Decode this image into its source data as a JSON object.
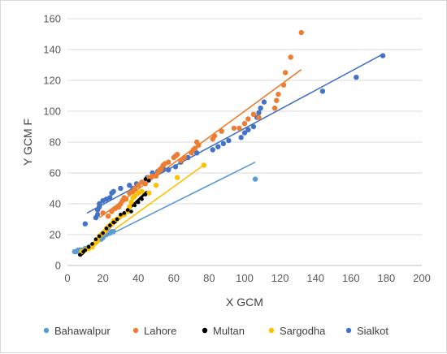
{
  "chart_data": {
    "type": "scatter",
    "title": "",
    "xlabel": "X GCM",
    "ylabel": "Y GCM F",
    "xlim": [
      0,
      200
    ],
    "ylim": [
      0,
      160
    ],
    "xticks": [
      0,
      20,
      40,
      60,
      80,
      100,
      120,
      140,
      160,
      180,
      200
    ],
    "yticks": [
      0,
      20,
      40,
      60,
      80,
      100,
      120,
      140,
      160
    ],
    "grid": "horizontal",
    "legend_position": "bottom",
    "trendlines": true,
    "series": [
      {
        "name": "Bahawalpur",
        "color": "#5b9bd5",
        "points": [
          [
            4,
            9
          ],
          [
            5,
            9
          ],
          [
            6,
            10
          ],
          [
            7,
            10
          ],
          [
            8,
            10
          ],
          [
            10,
            11
          ],
          [
            12,
            12
          ],
          [
            14,
            13
          ],
          [
            16,
            15
          ],
          [
            17,
            16
          ],
          [
            18,
            18
          ],
          [
            19,
            17
          ],
          [
            20,
            18
          ],
          [
            22,
            20
          ],
          [
            24,
            21
          ],
          [
            25,
            22
          ],
          [
            26,
            22
          ],
          [
            106,
            56
          ]
        ],
        "trend": [
          [
            3,
            8
          ],
          [
            106,
            67
          ]
        ]
      },
      {
        "name": "Lahore",
        "color": "#ed7d31",
        "points": [
          [
            20,
            34
          ],
          [
            23,
            32
          ],
          [
            25,
            35
          ],
          [
            27,
            37
          ],
          [
            29,
            38
          ],
          [
            30,
            40
          ],
          [
            31,
            42
          ],
          [
            32,
            44
          ],
          [
            33,
            43
          ],
          [
            35,
            47
          ],
          [
            37,
            48
          ],
          [
            38,
            50
          ],
          [
            40,
            52
          ],
          [
            42,
            54
          ],
          [
            44,
            53
          ],
          [
            46,
            57
          ],
          [
            48,
            58
          ],
          [
            50,
            58
          ],
          [
            51,
            60
          ],
          [
            52,
            62
          ],
          [
            53,
            63
          ],
          [
            54,
            65
          ],
          [
            55,
            66
          ],
          [
            57,
            67
          ],
          [
            60,
            70
          ],
          [
            61,
            71
          ],
          [
            62,
            72
          ],
          [
            64,
            68
          ],
          [
            66,
            70
          ],
          [
            70,
            73
          ],
          [
            71,
            75
          ],
          [
            72,
            76
          ],
          [
            73,
            80
          ],
          [
            74,
            78
          ],
          [
            82,
            82
          ],
          [
            83,
            84
          ],
          [
            87,
            87
          ],
          [
            94,
            89
          ],
          [
            97,
            89
          ],
          [
            100,
            92
          ],
          [
            102,
            95
          ],
          [
            105,
            98
          ],
          [
            108,
            96
          ],
          [
            117,
            102
          ],
          [
            118,
            107
          ],
          [
            119,
            111
          ],
          [
            122,
            117
          ],
          [
            123,
            125
          ],
          [
            126,
            135
          ],
          [
            132,
            151
          ]
        ],
        "trend": [
          [
            18,
            31
          ],
          [
            132,
            127
          ]
        ]
      },
      {
        "name": "Multan",
        "color": "#000000",
        "points": [
          [
            7,
            7
          ],
          [
            9,
            9
          ],
          [
            10,
            10
          ],
          [
            12,
            12
          ],
          [
            14,
            14
          ],
          [
            16,
            17
          ],
          [
            18,
            19
          ],
          [
            20,
            21
          ],
          [
            22,
            24
          ],
          [
            24,
            26
          ],
          [
            26,
            28
          ],
          [
            28,
            30
          ],
          [
            30,
            33
          ],
          [
            32,
            34
          ],
          [
            34,
            36
          ],
          [
            36,
            35
          ],
          [
            38,
            39
          ],
          [
            40,
            41
          ],
          [
            42,
            43
          ],
          [
            44,
            46
          ],
          [
            44,
            56
          ],
          [
            46,
            55
          ]
        ],
        "trend": [
          [
            7,
            6
          ],
          [
            45,
            48
          ]
        ]
      },
      {
        "name": "Sargodha",
        "color": "#ffc000",
        "points": [
          [
            8,
            9
          ],
          [
            10,
            10
          ],
          [
            12,
            11
          ],
          [
            14,
            12
          ],
          [
            15,
            14
          ],
          [
            16,
            15
          ],
          [
            17,
            16
          ],
          [
            18,
            19
          ],
          [
            19,
            20
          ],
          [
            20,
            21
          ],
          [
            21,
            22
          ],
          [
            22,
            24
          ],
          [
            23,
            25
          ],
          [
            24,
            26
          ],
          [
            25,
            27
          ],
          [
            26,
            29
          ],
          [
            28,
            30
          ],
          [
            30,
            32
          ],
          [
            32,
            33
          ],
          [
            34,
            35
          ],
          [
            35,
            38
          ],
          [
            36,
            41
          ],
          [
            37,
            44
          ],
          [
            38,
            45
          ],
          [
            40,
            47
          ],
          [
            42,
            48
          ],
          [
            46,
            47
          ],
          [
            50,
            52
          ],
          [
            62,
            57
          ],
          [
            77,
            65
          ]
        ],
        "trend": [
          [
            8,
            8
          ],
          [
            78,
            66
          ]
        ]
      },
      {
        "name": "Sialkot",
        "color": "#4472c4",
        "points": [
          [
            10,
            27
          ],
          [
            16,
            31
          ],
          [
            17,
            33
          ],
          [
            17,
            36
          ],
          [
            18,
            38
          ],
          [
            18,
            40
          ],
          [
            20,
            42
          ],
          [
            22,
            43
          ],
          [
            24,
            44
          ],
          [
            25,
            47
          ],
          [
            26,
            48
          ],
          [
            30,
            50
          ],
          [
            35,
            52
          ],
          [
            37,
            50
          ],
          [
            39,
            53
          ],
          [
            42,
            54
          ],
          [
            45,
            57
          ],
          [
            48,
            60
          ],
          [
            51,
            61
          ],
          [
            54,
            63
          ],
          [
            57,
            62
          ],
          [
            61,
            64
          ],
          [
            64,
            67
          ],
          [
            68,
            70
          ],
          [
            73,
            73
          ],
          [
            82,
            75
          ],
          [
            85,
            77
          ],
          [
            88,
            79
          ],
          [
            91,
            81
          ],
          [
            98,
            83
          ],
          [
            100,
            86
          ],
          [
            102,
            88
          ],
          [
            105,
            90
          ],
          [
            107,
            96
          ],
          [
            108,
            99
          ],
          [
            109,
            102
          ],
          [
            111,
            106
          ],
          [
            144,
            113
          ],
          [
            163,
            122
          ],
          [
            178,
            136
          ]
        ],
        "trend": [
          [
            11,
            34
          ],
          [
            178,
            137
          ]
        ]
      }
    ]
  }
}
